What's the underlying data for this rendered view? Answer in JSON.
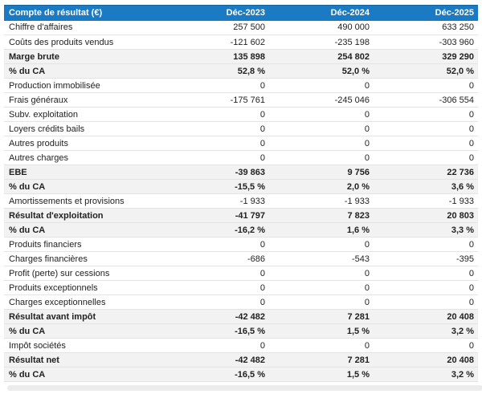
{
  "colors": {
    "header_bg": "#1a7ac4",
    "header_text": "#ffffff",
    "total_row_bg": "#f2f2f2",
    "row_border": "#e4e4e4",
    "body_text": "#222222"
  },
  "table": {
    "header": {
      "label": "Compte de résultat (€)",
      "columns": [
        "Déc-2023",
        "Déc-2024",
        "Déc-2025"
      ]
    },
    "rows": [
      {
        "label": "Chiffre d'affaires",
        "values": [
          "257 500",
          "490 000",
          "633 250"
        ],
        "bold": false
      },
      {
        "label": "Coûts des produits vendus",
        "values": [
          "-121 602",
          "-235 198",
          "-303 960"
        ],
        "bold": false
      },
      {
        "label": "Marge brute",
        "values": [
          "135 898",
          "254 802",
          "329 290"
        ],
        "bold": true
      },
      {
        "label": "% du CA",
        "values": [
          "52,8 %",
          "52,0 %",
          "52,0 %"
        ],
        "bold": true
      },
      {
        "label": "Production immobilisée",
        "values": [
          "0",
          "0",
          "0"
        ],
        "bold": false
      },
      {
        "label": "Frais généraux",
        "values": [
          "-175 761",
          "-245 046",
          "-306 554"
        ],
        "bold": false
      },
      {
        "label": "Subv. exploitation",
        "values": [
          "0",
          "0",
          "0"
        ],
        "bold": false
      },
      {
        "label": "Loyers crédits bails",
        "values": [
          "0",
          "0",
          "0"
        ],
        "bold": false
      },
      {
        "label": "Autres produits",
        "values": [
          "0",
          "0",
          "0"
        ],
        "bold": false
      },
      {
        "label": "Autres charges",
        "values": [
          "0",
          "0",
          "0"
        ],
        "bold": false
      },
      {
        "label": "EBE",
        "values": [
          "-39 863",
          "9 756",
          "22 736"
        ],
        "bold": true
      },
      {
        "label": "% du CA",
        "values": [
          "-15,5 %",
          "2,0 %",
          "3,6 %"
        ],
        "bold": true
      },
      {
        "label": "Amortissements et provisions",
        "values": [
          "-1 933",
          "-1 933",
          "-1 933"
        ],
        "bold": false
      },
      {
        "label": "Résultat d'exploitation",
        "values": [
          "-41 797",
          "7 823",
          "20 803"
        ],
        "bold": true
      },
      {
        "label": "% du CA",
        "values": [
          "-16,2 %",
          "1,6 %",
          "3,3 %"
        ],
        "bold": true
      },
      {
        "label": "Produits financiers",
        "values": [
          "0",
          "0",
          "0"
        ],
        "bold": false
      },
      {
        "label": "Charges financières",
        "values": [
          "-686",
          "-543",
          "-395"
        ],
        "bold": false
      },
      {
        "label": "Profit (perte) sur cessions",
        "values": [
          "0",
          "0",
          "0"
        ],
        "bold": false
      },
      {
        "label": "Produits exceptionnels",
        "values": [
          "0",
          "0",
          "0"
        ],
        "bold": false
      },
      {
        "label": "Charges exceptionnelles",
        "values": [
          "0",
          "0",
          "0"
        ],
        "bold": false
      },
      {
        "label": "Résultat avant impôt",
        "values": [
          "-42 482",
          "7 281",
          "20 408"
        ],
        "bold": true
      },
      {
        "label": "% du CA",
        "values": [
          "-16,5 %",
          "1,5 %",
          "3,2 %"
        ],
        "bold": true
      },
      {
        "label": "Impôt sociétés",
        "values": [
          "0",
          "0",
          "0"
        ],
        "bold": false
      },
      {
        "label": "Résultat net",
        "values": [
          "-42 482",
          "7 281",
          "20 408"
        ],
        "bold": true
      },
      {
        "label": "% du CA",
        "values": [
          "-16,5 %",
          "1,5 %",
          "3,2 %"
        ],
        "bold": true
      }
    ]
  }
}
